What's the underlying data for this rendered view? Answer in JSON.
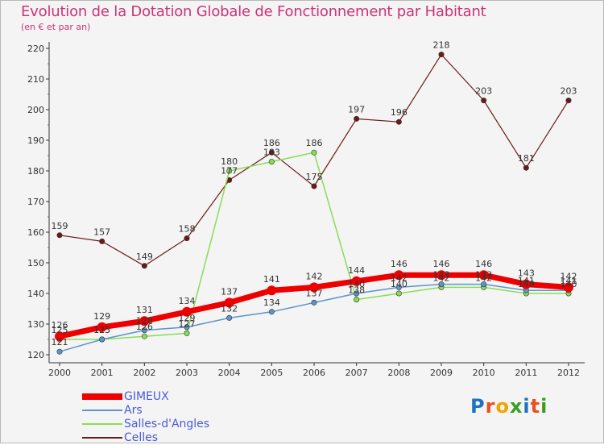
{
  "header": {
    "title": "Evolution de la Dotation Globale de Fonctionnement par Habitant",
    "subtitle": "(en € et par an)"
  },
  "logo": {
    "text": "Proxiti",
    "letters": [
      "P",
      "r",
      "o",
      "x",
      "i",
      "t",
      "i"
    ],
    "colors": [
      "#1e73be",
      "#e8501f",
      "#f0a500",
      "#3a9d23",
      "#1e73be",
      "#e8501f",
      "#3a9d23"
    ]
  },
  "chart_data": {
    "type": "line",
    "title": "Evolution de la Dotation Globale de Fonctionnement par Habitant",
    "subtitle": "(en € et par an)",
    "xlabel": "",
    "ylabel": "",
    "categories": [
      "2000",
      "2001",
      "2002",
      "2003",
      "2004",
      "2005",
      "2006",
      "2007",
      "2008",
      "2009",
      "2010",
      "2011",
      "2012"
    ],
    "ylim": [
      120,
      220
    ],
    "yticks": [
      120,
      130,
      140,
      150,
      160,
      170,
      180,
      190,
      200,
      210,
      220
    ],
    "grid": false,
    "legend_position": "bottom-left",
    "series": [
      {
        "name": "GIMEUX",
        "color": "#ee0000",
        "values": [
          126,
          129,
          131,
          134,
          137,
          141,
          142,
          144,
          146,
          146,
          146,
          143,
          142
        ],
        "labels": [
          "126",
          "129",
          "131",
          "134",
          "137",
          "141",
          "142",
          "144",
          "146",
          "146",
          "146",
          "143",
          "142"
        ]
      },
      {
        "name": "Ars",
        "color": "#5a96c9",
        "values": [
          121,
          125,
          128,
          129,
          132,
          134,
          137,
          140,
          142,
          143,
          143,
          141,
          141
        ],
        "labels": [
          "121",
          "125",
          "128",
          "129",
          "132",
          "134",
          "137",
          "140",
          "142",
          "143",
          "143",
          "141",
          "141"
        ]
      },
      {
        "name": "Salles-d'Angles",
        "color": "#88dd55",
        "values": [
          125,
          125,
          126,
          127,
          180,
          183,
          186,
          138,
          140,
          142,
          142,
          140,
          140
        ],
        "labels": [
          "125",
          "125",
          "126",
          "127",
          "180",
          "183",
          "186",
          "138",
          "140",
          "142",
          "142",
          "140",
          "140"
        ]
      },
      {
        "name": "Celles",
        "color": "#6b1a1a",
        "values": [
          159,
          157,
          149,
          158,
          177,
          186,
          175,
          197,
          196,
          218,
          203,
          181,
          203
        ],
        "labels": [
          "159",
          "157",
          "149",
          "158",
          "177",
          "186",
          "175",
          "197",
          "196",
          "218",
          "203",
          "181",
          "203"
        ]
      }
    ]
  }
}
